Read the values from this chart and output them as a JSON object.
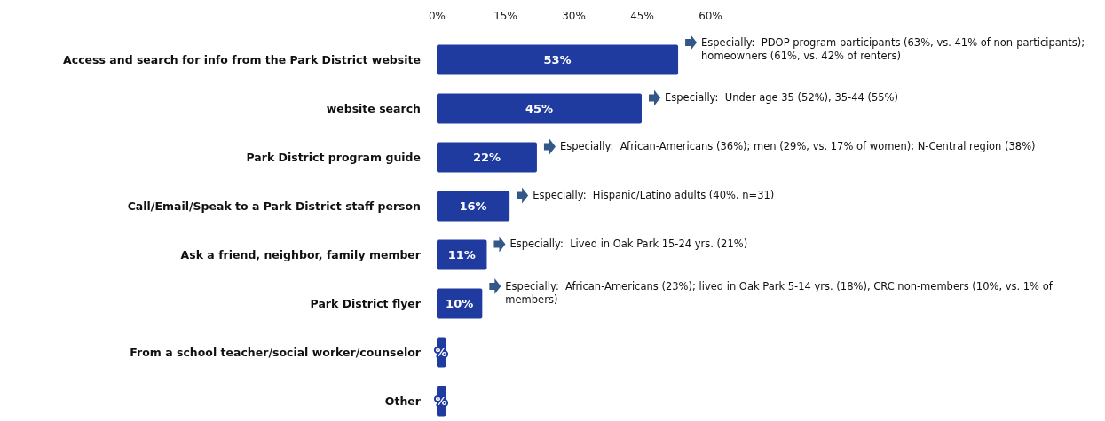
{
  "chart_data": {
    "type": "bar",
    "orientation": "horizontal",
    "categories": [
      "Access and search for info from the Park District website",
      "website search",
      "Park District program guide",
      "Call/Email/Speak to a Park District staff person",
      "Ask a friend, neighbor, family member",
      "Park District flyer",
      "From a school teacher/social worker/counselor",
      "Other"
    ],
    "values": [
      53,
      45,
      22,
      16,
      11,
      10,
      2,
      2
    ],
    "value_labels": [
      "53%",
      "45%",
      "22%",
      "16%",
      "11%",
      "10%",
      "%",
      "%"
    ],
    "color": "#1f3b9f",
    "xlim": [
      0,
      60
    ],
    "xticks": [
      {
        "value": 0,
        "label": "0%"
      },
      {
        "value": 15,
        "label": "15%"
      },
      {
        "value": 30,
        "label": "30%"
      },
      {
        "value": 45,
        "label": "45%"
      },
      {
        "value": 60,
        "label": "60%"
      }
    ],
    "annotations": [
      {
        "text": "Especially:  PDOP program participants (63%, vs. 41% of non-participants); homeowners (61%, vs. 42% of renters)",
        "x": 53,
        "y": "Access and search for info from the Park District website"
      },
      {
        "text": "Especially:  Under age 35 (52%), 35-44 (55%)",
        "x": 45,
        "y": "website search"
      },
      {
        "text": "Especially:  African-Americans (36%); men (29%, vs. 17% of women); N-Central region (38%)",
        "x": 22,
        "y": "Park District program guide"
      },
      {
        "text": "Especially:  Hispanic/Latino adults (40%, n=31)",
        "x": 16,
        "y": "Call/Email/Speak to a Park District staff person"
      },
      {
        "text": "Especially:  Lived in Oak Park 15-24 yrs. (21%)",
        "x": 11,
        "y": "Ask a friend, neighbor, family member"
      },
      {
        "text": "Especially:  African-Americans (23%); lived in Oak Park 5-14 yrs. (18%), CRC non-members (10%, vs. 1% of members)",
        "x": 10,
        "y": "Park District flyer"
      }
    ]
  }
}
